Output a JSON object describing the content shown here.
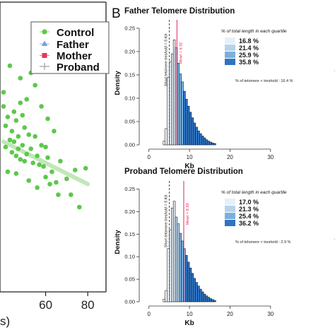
{
  "panel_labels": {
    "b": "B"
  },
  "left_panel": {
    "x_tick_labels": [
      "60",
      "80"
    ],
    "x_axis_fragment": "s)",
    "legend": [
      {
        "label": "Control",
        "color": "#5cc84a",
        "symbol": "circle"
      },
      {
        "label": "Father",
        "color": "#6fa8dc",
        "symbol": "triangle"
      },
      {
        "label": "Mother",
        "color": "#e8365d",
        "symbol": "square"
      },
      {
        "label": "Proband",
        "color": "#aaaaaa",
        "symbol": "cross"
      }
    ],
    "point_color": "#5cc84a",
    "trend_color": "#b7e3ad"
  },
  "chart_data": [
    {
      "type": "scatter",
      "title": "",
      "xlabel": "",
      "ylabel": "",
      "xlim": [
        39,
        88
      ],
      "x_ticks": [
        60,
        80
      ],
      "series": [
        {
          "name": "Control",
          "points": [
            [
              40,
              10.3
            ],
            [
              41,
              9.2
            ],
            [
              42,
              9.7
            ],
            [
              44,
              8.9
            ],
            [
              45,
              10.0
            ],
            [
              46,
              9.5
            ],
            [
              47,
              8.6
            ],
            [
              48,
              10.5
            ],
            [
              49,
              9.8
            ],
            [
              50,
              9.1
            ],
            [
              41,
              8.0
            ],
            [
              43,
              8.4
            ],
            [
              44,
              7.7
            ],
            [
              45,
              8.3
            ],
            [
              46,
              7.5
            ],
            [
              47,
              7.9
            ],
            [
              48,
              7.3
            ],
            [
              49,
              8.1
            ],
            [
              50,
              7.2
            ],
            [
              51,
              7.6
            ],
            [
              52,
              8.7
            ],
            [
              53,
              7.9
            ],
            [
              54,
              7.1
            ],
            [
              55,
              8.6
            ],
            [
              56,
              7.5
            ],
            [
              57,
              7.0
            ],
            [
              58,
              8.1
            ],
            [
              59,
              6.9
            ],
            [
              60,
              6.3
            ],
            [
              61,
              7.4
            ],
            [
              62,
              5.9
            ],
            [
              63,
              6.6
            ],
            [
              64,
              8.9
            ],
            [
              65,
              6.0
            ],
            [
              66,
              5.3
            ],
            [
              67,
              7.2
            ],
            [
              70,
              6.2
            ],
            [
              72,
              5.3
            ],
            [
              74,
              6.7
            ],
            [
              76,
              4.6
            ],
            [
              79,
              6.8
            ],
            [
              48,
              11.9
            ],
            [
              51,
              10.7
            ],
            [
              53,
              12.2
            ],
            [
              55,
              11.5
            ],
            [
              58,
              10.3
            ],
            [
              61,
              9.6
            ],
            [
              40,
              11.1
            ],
            [
              43,
              12.6
            ],
            [
              52,
              6.1
            ],
            [
              56,
              5.7
            ],
            [
              60,
              8.0
            ],
            [
              46,
              6.5
            ],
            [
              42,
              6.6
            ]
          ]
        }
      ],
      "trend_line": {
        "x": [
          40,
          80
        ],
        "y": [
          8.3,
          5.9
        ]
      }
    },
    {
      "type": "bar",
      "title": "Father Telomere Distribution",
      "xlabel": "Kb",
      "ylabel": "Density",
      "xlim": [
        -1,
        33
      ],
      "ylim": [
        0,
        0.265
      ],
      "x_ticks": [
        0,
        10,
        20,
        30
      ],
      "y_ticks": [
        0.0,
        0.05,
        0.1,
        0.15,
        0.2,
        0.25
      ],
      "y_tick_labels": [
        "0.00",
        "0.05",
        "0.10",
        "0.15",
        "0.20",
        "0.25"
      ],
      "bin_width": 0.5,
      "bins_start": 3.5,
      "values": [
        0.008,
        0.035,
        0.145,
        0.178,
        0.195,
        0.225,
        0.208,
        0.175,
        0.152,
        0.135,
        0.115,
        0.098,
        0.083,
        0.07,
        0.058,
        0.047,
        0.038,
        0.03,
        0.024,
        0.019,
        0.015,
        0.011,
        0.008,
        0.006,
        0.004,
        0.003
      ],
      "threshold": 5,
      "threshold_label": "Short telomere treshold = 5 Kb",
      "mean": 6.91,
      "mean_label": "Mean = 6.91",
      "quartile_breaks": [
        6.3,
        7.2,
        8.5
      ],
      "quartile_title": "% of total length in each quartile",
      "quartile_labels": [
        "16.8 %",
        "21.4 %",
        "25.9 %",
        "35.8 %"
      ],
      "quartile_colors": [
        "#e6f0f8",
        "#b7d3ea",
        "#7bb0dc",
        "#2f74c4"
      ],
      "note": "% of telomere < treshold :  16.4  %"
    },
    {
      "type": "bar",
      "title": "Proband Telomere Distribution",
      "xlabel": "Kb",
      "ylabel": "Density",
      "xlim": [
        -1,
        33
      ],
      "ylim": [
        0,
        0.265
      ],
      "x_ticks": [
        0,
        10,
        20,
        30
      ],
      "y_ticks": [
        0.0,
        0.05,
        0.1,
        0.15,
        0.2,
        0.25
      ],
      "y_tick_labels": [
        "0.00",
        "0.05",
        "0.10",
        "0.15",
        "0.20",
        "0.25"
      ],
      "bin_width": 0.5,
      "bins_start": 3.5,
      "values": [
        0.006,
        0.025,
        0.118,
        0.16,
        0.208,
        0.223,
        0.188,
        0.173,
        0.152,
        0.135,
        0.118,
        0.103,
        0.088,
        0.075,
        0.063,
        0.052,
        0.043,
        0.035,
        0.028,
        0.022,
        0.017,
        0.013,
        0.01,
        0.007,
        0.005,
        0.003
      ],
      "threshold": 5,
      "threshold_label": "Short telomere treshold = 5 Kb",
      "mean": 8.59,
      "mean_label": "Mean = 8.59",
      "quartile_breaks": [
        6.3,
        7.5,
        9.0
      ],
      "quartile_title": "% of total length in each quartile",
      "quartile_labels": [
        "17.0 %",
        "21.3 %",
        "25.4 %",
        "36.2 %"
      ],
      "quartile_colors": [
        "#e6f0f8",
        "#b7d3ea",
        "#7bb0dc",
        "#2f74c4"
      ],
      "note": "% of telomere < treshold :  2.9  %"
    }
  ]
}
